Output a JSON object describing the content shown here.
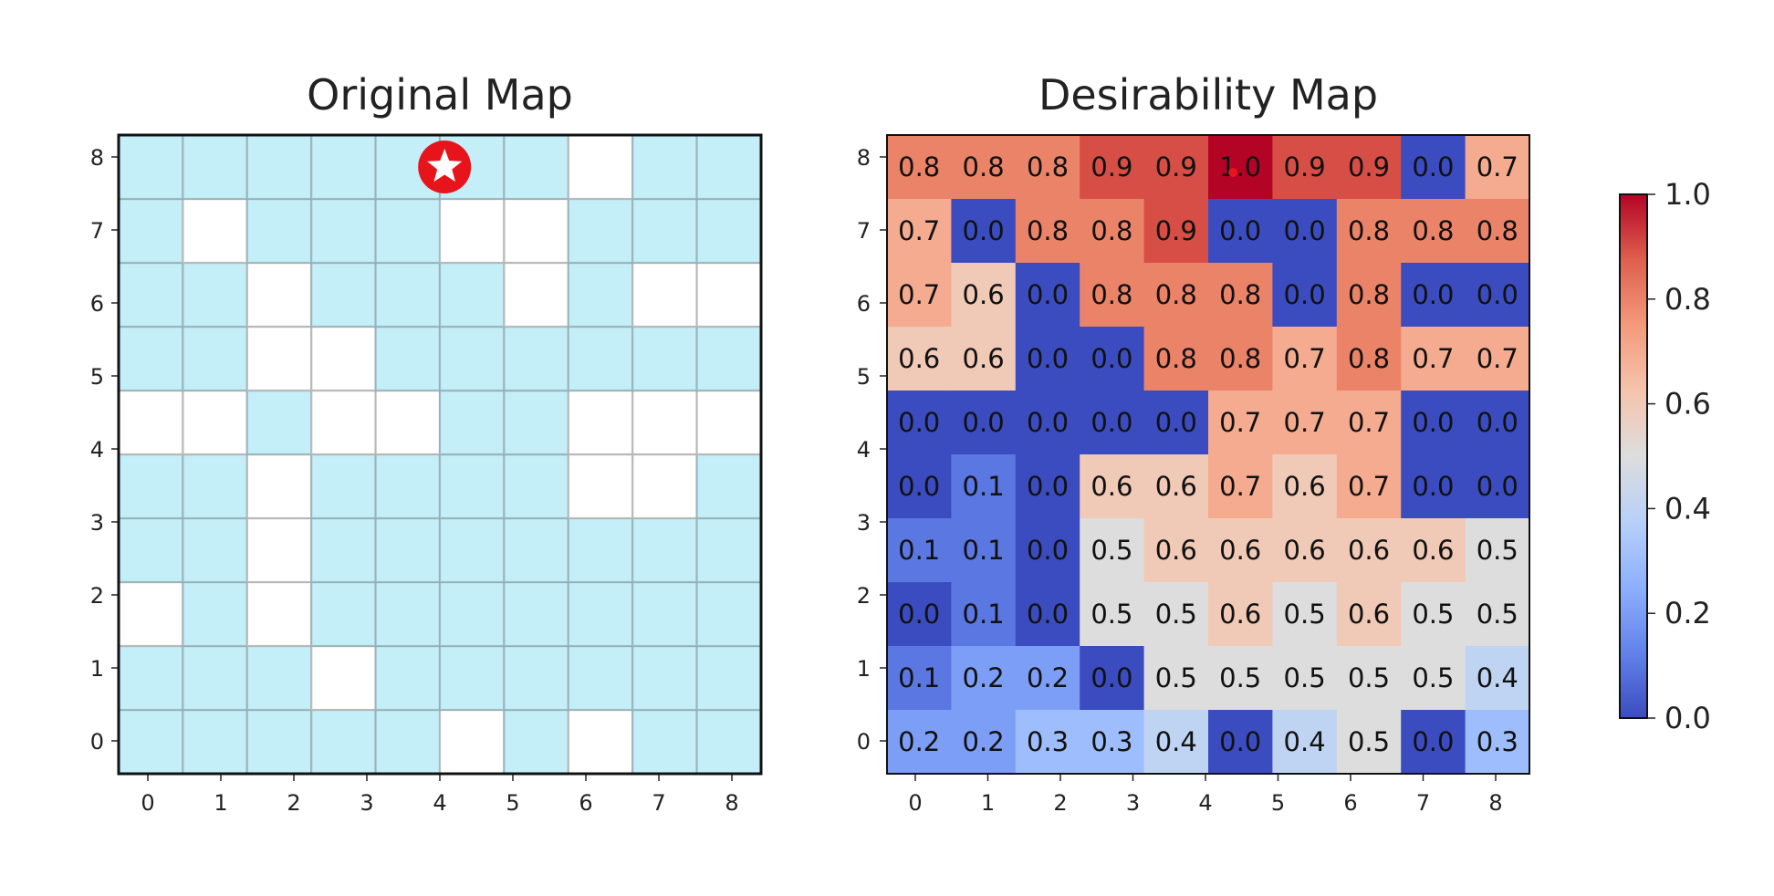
{
  "chart_data": [
    {
      "type": "heatmap",
      "title": "Original Map",
      "x_ticks": [
        "0",
        "1",
        "2",
        "3",
        "4",
        "5",
        "6",
        "7",
        "8"
      ],
      "y_ticks": [
        "0",
        "1",
        "2",
        "3",
        "4",
        "5",
        "6",
        "7",
        "8"
      ],
      "grid_size": 10,
      "open_color": "#c4eef8",
      "blocked_color": "#ffffff",
      "goal_color": "#e8141b",
      "goal_marker": "star-icon",
      "goal_cell": [
        5,
        9
      ],
      "blocked_cells": [
        [
          7,
          9
        ],
        [
          1,
          8
        ],
        [
          5,
          8
        ],
        [
          6,
          8
        ],
        [
          2,
          7
        ],
        [
          6,
          7
        ],
        [
          8,
          7
        ],
        [
          9,
          7
        ],
        [
          2,
          6
        ],
        [
          3,
          6
        ],
        [
          0,
          5
        ],
        [
          1,
          5
        ],
        [
          3,
          5
        ],
        [
          4,
          5
        ],
        [
          7,
          5
        ],
        [
          8,
          5
        ],
        [
          9,
          5
        ],
        [
          2,
          4
        ],
        [
          7,
          4
        ],
        [
          8,
          4
        ],
        [
          2,
          3
        ],
        [
          0,
          2
        ],
        [
          2,
          2
        ],
        [
          3,
          1
        ],
        [
          5,
          0
        ],
        [
          7,
          0
        ]
      ]
    },
    {
      "type": "heatmap",
      "title": "Desirability Map",
      "x_ticks": [
        "0",
        "1",
        "2",
        "3",
        "4",
        "5",
        "6",
        "7",
        "8"
      ],
      "y_ticks": [
        "0",
        "1",
        "2",
        "3",
        "4",
        "5",
        "6",
        "7",
        "8"
      ],
      "colormap": "coolwarm",
      "vmin": 0.0,
      "vmax": 1.0,
      "colorbar_ticks": [
        "0.0",
        "0.2",
        "0.4",
        "0.6",
        "0.8",
        "1.0"
      ],
      "values_top_to_bottom": [
        [
          0.8,
          0.8,
          0.8,
          0.9,
          0.9,
          1.0,
          0.9,
          0.9,
          0.0,
          0.7
        ],
        [
          0.7,
          0.0,
          0.8,
          0.8,
          0.9,
          0.0,
          0.0,
          0.8,
          0.8,
          0.8
        ],
        [
          0.7,
          0.6,
          0.0,
          0.8,
          0.8,
          0.8,
          0.0,
          0.8,
          0.0,
          0.0
        ],
        [
          0.6,
          0.6,
          0.0,
          0.0,
          0.8,
          0.8,
          0.7,
          0.8,
          0.7,
          0.7
        ],
        [
          0.0,
          0.0,
          0.0,
          0.0,
          0.0,
          0.7,
          0.7,
          0.7,
          0.0,
          0.0
        ],
        [
          0.0,
          0.1,
          0.0,
          0.6,
          0.6,
          0.7,
          0.6,
          0.7,
          0.0,
          0.0
        ],
        [
          0.1,
          0.1,
          0.0,
          0.5,
          0.6,
          0.6,
          0.6,
          0.6,
          0.6,
          0.5
        ],
        [
          0.0,
          0.1,
          0.0,
          0.5,
          0.5,
          0.6,
          0.5,
          0.6,
          0.5,
          0.5
        ],
        [
          0.1,
          0.2,
          0.2,
          0.0,
          0.5,
          0.5,
          0.5,
          0.5,
          0.5,
          0.4
        ],
        [
          0.2,
          0.2,
          0.3,
          0.3,
          0.4,
          0.0,
          0.4,
          0.5,
          0.0,
          0.3
        ]
      ],
      "labels_top_to_bottom": [
        [
          "0.8",
          "0.8",
          "0.8",
          "0.9",
          "0.9",
          "1.0",
          "0.9",
          "0.9",
          "0.0",
          "0.7"
        ],
        [
          "0.7",
          "0.0",
          "0.8",
          "0.8",
          "0.9",
          "0.0",
          "0.0",
          "0.8",
          "0.8",
          "0.8"
        ],
        [
          "0.7",
          "0.6",
          "0.0",
          "0.8",
          "0.8",
          "0.8",
          "0.0",
          "0.8",
          "0.0",
          "0.0"
        ],
        [
          "0.6",
          "0.6",
          "0.0",
          "0.0",
          "0.8",
          "0.8",
          "0.7",
          "0.8",
          "0.7",
          "0.7"
        ],
        [
          "0.0",
          "0.0",
          "0.0",
          "0.0",
          "0.0",
          "0.7",
          "0.7",
          "0.7",
          "0.0",
          "0.0"
        ],
        [
          "0.0",
          "0.1",
          "0.0",
          "0.6",
          "0.6",
          "0.7",
          "0.6",
          "0.7",
          "0.0",
          "0.0"
        ],
        [
          "0.1",
          "0.1",
          "0.0",
          "0.5",
          "0.6",
          "0.6",
          "0.6",
          "0.6",
          "0.6",
          "0.5"
        ],
        [
          "0.0",
          "0.1",
          "0.0",
          "0.5",
          "0.5",
          "0.6",
          "0.5",
          "0.6",
          "0.5",
          "0.5"
        ],
        [
          "0.1",
          "0.2",
          "0.2",
          "0.0",
          "0.5",
          "0.5",
          "0.5",
          "0.5",
          "0.5",
          "0.4"
        ],
        [
          "0.2",
          "0.2",
          "0.3",
          "0.3",
          "0.4",
          "0.0",
          "0.4",
          "0.5",
          "0.0",
          "0.3"
        ]
      ],
      "goal_marker_color": "#e8141b",
      "goal_cell": [
        5,
        9
      ]
    }
  ]
}
